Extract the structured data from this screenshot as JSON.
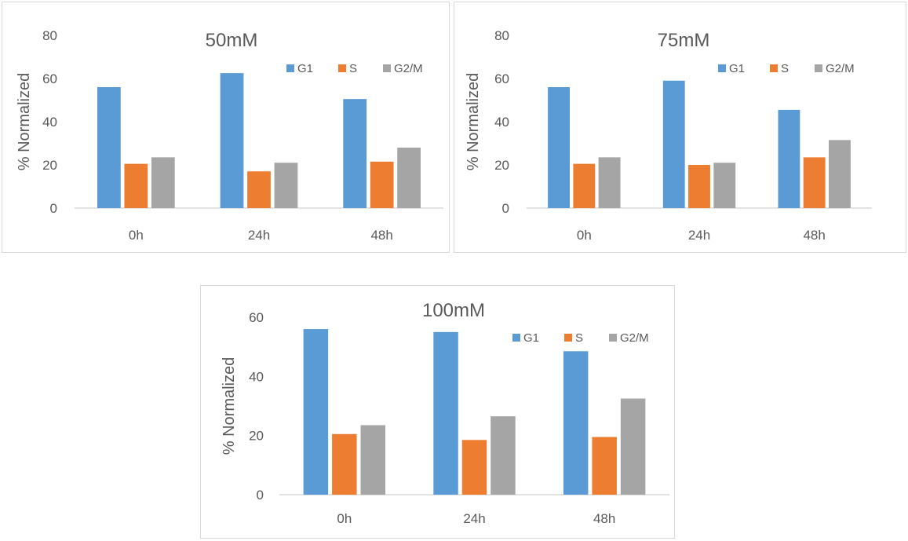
{
  "chart_data": [
    {
      "type": "bar",
      "title": "50mM",
      "ylabel": "% Normalized",
      "xlabel": "",
      "ylim": [
        0,
        80
      ],
      "yticks": [
        0,
        20,
        40,
        60,
        80
      ],
      "categories": [
        "0h",
        "24h",
        "48h"
      ],
      "legend_position": "top-right",
      "grid": false,
      "series": [
        {
          "name": "G1",
          "color": "#5b9bd5",
          "values": [
            56,
            62.5,
            50.5
          ]
        },
        {
          "name": "S",
          "color": "#ed7d31",
          "values": [
            20.5,
            17,
            21.5
          ]
        },
        {
          "name": "G2/M",
          "color": "#a5a5a5",
          "values": [
            23.5,
            21,
            28
          ]
        }
      ]
    },
    {
      "type": "bar",
      "title": "75mM",
      "ylabel": "% Normalized",
      "xlabel": "",
      "ylim": [
        0,
        80
      ],
      "yticks": [
        0,
        20,
        40,
        60,
        80
      ],
      "categories": [
        "0h",
        "24h",
        "48h"
      ],
      "legend_position": "top-right",
      "grid": false,
      "series": [
        {
          "name": "G1",
          "color": "#5b9bd5",
          "values": [
            56,
            59,
            45.5
          ]
        },
        {
          "name": "S",
          "color": "#ed7d31",
          "values": [
            20.5,
            20,
            23.5
          ]
        },
        {
          "name": "G2/M",
          "color": "#a5a5a5",
          "values": [
            23.5,
            21,
            31.5
          ]
        }
      ]
    },
    {
      "type": "bar",
      "title": "100mM",
      "ylabel": "% Normalized",
      "xlabel": "",
      "ylim": [
        0,
        60
      ],
      "yticks": [
        0,
        20,
        40,
        60
      ],
      "categories": [
        "0h",
        "24h",
        "48h"
      ],
      "legend_position": "top-right",
      "grid": false,
      "series": [
        {
          "name": "G1",
          "color": "#5b9bd5",
          "values": [
            56,
            55,
            48.5
          ]
        },
        {
          "name": "S",
          "color": "#ed7d31",
          "values": [
            20.5,
            18.5,
            19.5
          ]
        },
        {
          "name": "G2/M",
          "color": "#a5a5a5",
          "values": [
            23.5,
            26.5,
            32.5
          ]
        }
      ]
    }
  ]
}
